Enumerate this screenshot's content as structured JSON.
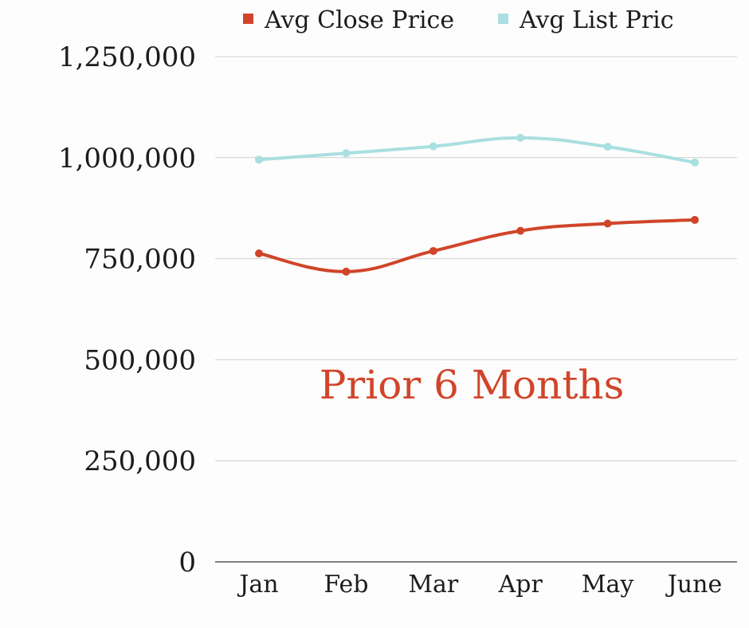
{
  "colors": {
    "close": "#d0452a",
    "list": "#a9dfe0",
    "grid": "#cfcfcf",
    "axis": "#555555",
    "annotation": "#d0452a"
  },
  "chart_data": {
    "type": "line",
    "categories": [
      "Jan",
      "Feb",
      "Mar",
      "Apr",
      "May",
      "June"
    ],
    "series": [
      {
        "name": "Avg Close Price",
        "color": "#d0452a",
        "values": [
          763000,
          718000,
          769000,
          819000,
          837000,
          846000
        ]
      },
      {
        "name": "Avg List Pric",
        "color": "#a9dfe0",
        "values": [
          995000,
          1011000,
          1028000,
          1049000,
          1027000,
          988000
        ]
      }
    ],
    "ylim": [
      0,
      1250000
    ],
    "yticks": [
      0,
      250000,
      500000,
      750000,
      1000000,
      1250000
    ],
    "ytick_labels": [
      "0",
      "250,000",
      "500,000",
      "750,000",
      "1,000,000",
      "1,250,000"
    ],
    "grid": true,
    "legend_position": "top",
    "smooth": true,
    "markers": true,
    "annotation": "Prior 6 Months"
  }
}
